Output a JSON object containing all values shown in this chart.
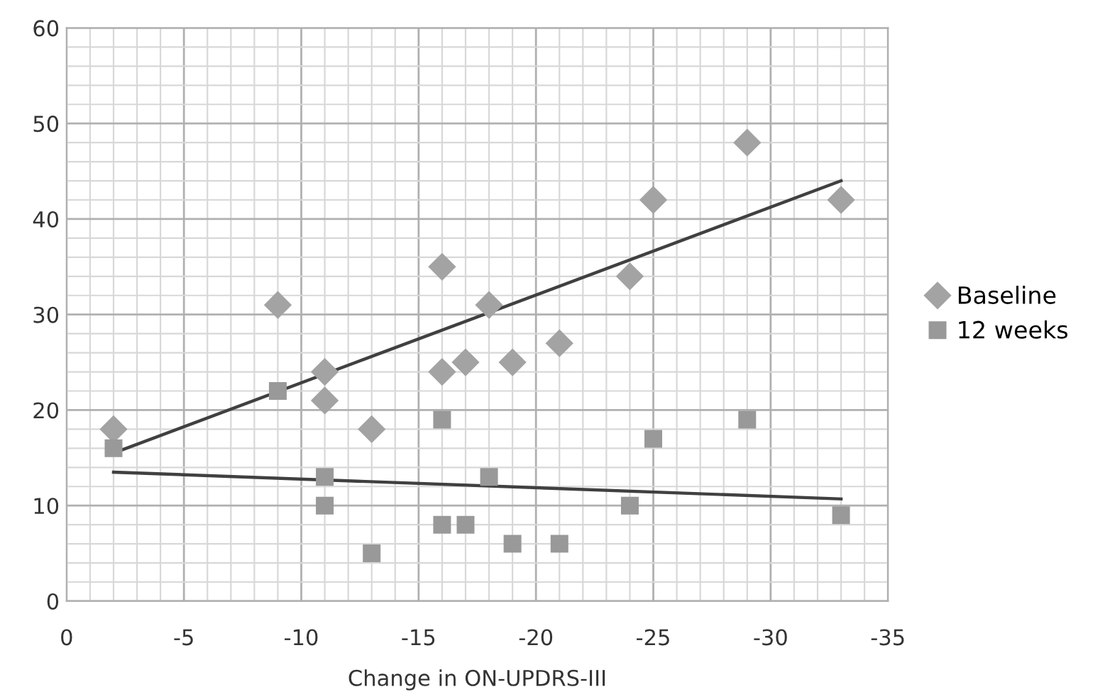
{
  "chart_data": {
    "type": "scatter",
    "xlabel": "Change in ON-UPDRS-III",
    "xlim": [
      0,
      -35
    ],
    "ylim": [
      0,
      60
    ],
    "xticks": [
      0,
      {
        "value": -1,
        "label": null
      },
      {
        "value": -2,
        "label": null
      },
      {
        "value": -3,
        "label": null
      },
      {
        "value": -4,
        "label": null
      },
      -5,
      {
        "value": -6,
        "label": null
      },
      {
        "value": -7,
        "label": null
      },
      {
        "value": -8,
        "label": null
      },
      {
        "value": -9,
        "label": null
      },
      -10,
      {
        "value": -11,
        "label": null
      },
      {
        "value": -12,
        "label": null
      },
      {
        "value": -13,
        "label": null
      },
      {
        "value": -14,
        "label": null
      },
      -15,
      {
        "value": -16,
        "label": null
      },
      {
        "value": -17,
        "label": null
      },
      {
        "value": -18,
        "label": null
      },
      {
        "value": -19,
        "label": null
      },
      -20,
      {
        "value": -21,
        "label": null
      },
      {
        "value": -22,
        "label": null
      },
      {
        "value": -23,
        "label": null
      },
      {
        "value": -24,
        "label": null
      },
      -25,
      {
        "value": -26,
        "label": null
      },
      {
        "value": -27,
        "label": null
      },
      {
        "value": -28,
        "label": null
      },
      {
        "value": -29,
        "label": null
      },
      -30,
      {
        "value": -31,
        "label": null
      },
      {
        "value": -32,
        "label": null
      },
      {
        "value": -33,
        "label": null
      },
      {
        "value": -34,
        "label": null
      },
      -35
    ],
    "yticks": [
      0,
      {
        "value": 2,
        "label": null
      },
      {
        "value": 4,
        "label": null
      },
      {
        "value": 6,
        "label": null
      },
      {
        "value": 8,
        "label": null
      },
      10,
      {
        "value": 12,
        "label": null
      },
      {
        "value": 14,
        "label": null
      },
      {
        "value": 16,
        "label": null
      },
      {
        "value": 18,
        "label": null
      },
      20,
      {
        "value": 22,
        "label": null
      },
      {
        "value": 24,
        "label": null
      },
      {
        "value": 26,
        "label": null
      },
      {
        "value": 28,
        "label": null
      },
      30,
      {
        "value": 32,
        "label": null
      },
      {
        "value": 34,
        "label": null
      },
      {
        "value": 36,
        "label": null
      },
      {
        "value": 38,
        "label": null
      },
      40,
      {
        "value": 42,
        "label": null
      },
      {
        "value": 44,
        "label": null
      },
      {
        "value": 46,
        "label": null
      },
      {
        "value": 48,
        "label": null
      },
      50,
      {
        "value": 52,
        "label": null
      },
      {
        "value": 54,
        "label": null
      },
      {
        "value": 56,
        "label": null
      },
      {
        "value": 58,
        "label": null
      },
      60
    ],
    "grid": true,
    "legend": "right",
    "series": [
      {
        "name": "Baseline",
        "marker": "diamond",
        "color": "#a3a3a3",
        "x": [
          -2,
          -9,
          -11,
          -11,
          -13,
          -16,
          -16,
          -17,
          -18,
          -19,
          -21,
          -24,
          -25,
          -29,
          -33
        ],
        "values": [
          18,
          31,
          24,
          21,
          18,
          35,
          24,
          25,
          31,
          25,
          27,
          34,
          42,
          48,
          42
        ]
      },
      {
        "name": "12 weeks",
        "marker": "square",
        "color": "#999999",
        "x": [
          -2,
          -9,
          -11,
          -11,
          -13,
          -16,
          -16,
          -17,
          -18,
          -19,
          -21,
          -24,
          -25,
          -29,
          -33
        ],
        "values": [
          16,
          22,
          13,
          10,
          5,
          19,
          8,
          8,
          13,
          6,
          6,
          10,
          17,
          19,
          9
        ]
      },
      {
        "type": "line",
        "color": "#404040",
        "x": [
          -2,
          -33
        ],
        "values": [
          15.5,
          44
        ]
      },
      {
        "type": "line",
        "color": "#404040",
        "x": [
          -2,
          -33
        ],
        "values": [
          13.5,
          10.7
        ]
      }
    ]
  }
}
